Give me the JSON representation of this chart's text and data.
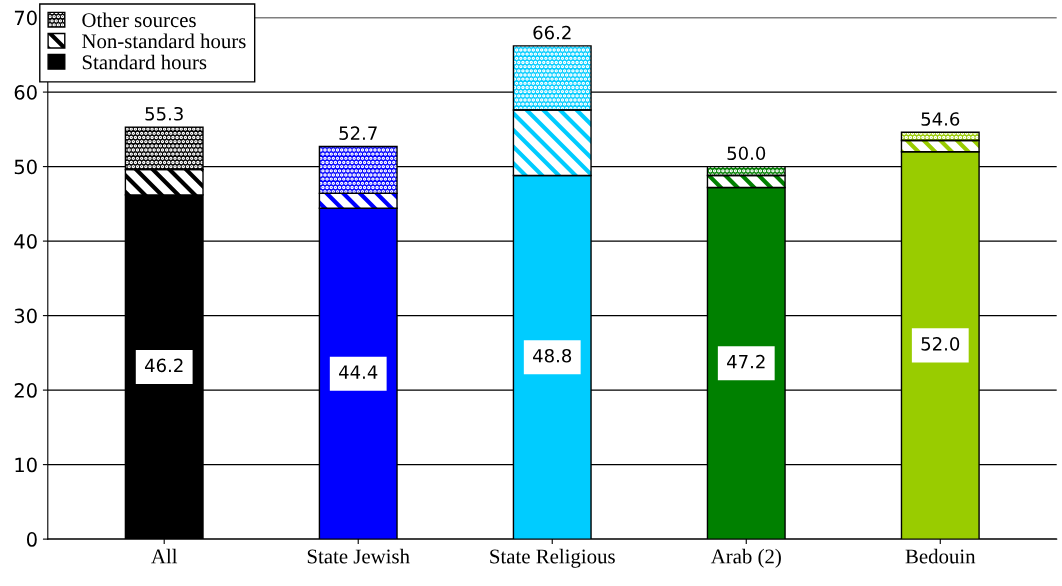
{
  "chart_data": {
    "type": "bar",
    "stacked": true,
    "categories": [
      "All",
      "State Jewish",
      "State Religious",
      "Arab (2)",
      "Bedouin"
    ],
    "series": [
      {
        "name": "Standard hours",
        "colors": [
          "#000000",
          "#0000ff",
          "#00ccff",
          "#008000",
          "#99cc00"
        ],
        "values": [
          46.2,
          44.4,
          48.8,
          47.2,
          52.0
        ],
        "value_labels": [
          "46.2",
          "44.4",
          "48.8",
          "47.2",
          "52.0"
        ]
      },
      {
        "name": "Non-standard hours",
        "colors": [
          "#000000",
          "#0000ff",
          "#00ccff",
          "#008000",
          "#99cc00"
        ],
        "values": [
          3.4,
          2.0,
          8.8,
          1.6,
          1.5
        ]
      },
      {
        "name": "Other sources",
        "colors": [
          "#000000",
          "#0000ff",
          "#00ccff",
          "#008000",
          "#99cc00"
        ],
        "values": [
          5.7,
          6.3,
          8.6,
          1.2,
          1.1
        ]
      }
    ],
    "totals": [
      "55.3",
      "52.7",
      "66.2",
      "50.0",
      "54.6"
    ],
    "ylim": [
      0,
      70
    ],
    "yticks": [
      0,
      10,
      20,
      30,
      40,
      50,
      60,
      70
    ],
    "grid": "y",
    "legend": "top left"
  }
}
